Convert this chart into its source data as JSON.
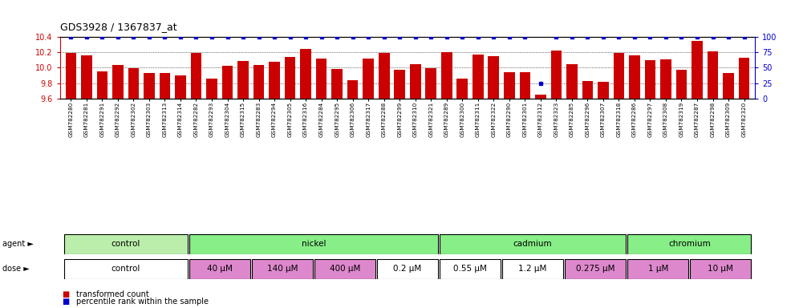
{
  "title": "GDS3928 / 1367837_at",
  "samples": [
    "GSM782280",
    "GSM782281",
    "GSM782291",
    "GSM782292",
    "GSM782302",
    "GSM782303",
    "GSM782313",
    "GSM782314",
    "GSM782282",
    "GSM782293",
    "GSM782304",
    "GSM782315",
    "GSM782283",
    "GSM782294",
    "GSM782305",
    "GSM782316",
    "GSM782284",
    "GSM782295",
    "GSM782306",
    "GSM782317",
    "GSM782288",
    "GSM782299",
    "GSM782310",
    "GSM782321",
    "GSM782289",
    "GSM782300",
    "GSM782311",
    "GSM782322",
    "GSM782290",
    "GSM782301",
    "GSM782312",
    "GSM782323",
    "GSM782285",
    "GSM782296",
    "GSM782307",
    "GSM782318",
    "GSM782286",
    "GSM782297",
    "GSM782308",
    "GSM782319",
    "GSM782287",
    "GSM782298",
    "GSM782309",
    "GSM782320"
  ],
  "bar_values": [
    10.19,
    10.16,
    9.95,
    10.04,
    9.99,
    9.93,
    9.93,
    9.9,
    10.19,
    9.86,
    10.03,
    10.09,
    10.04,
    10.08,
    10.14,
    10.24,
    10.12,
    9.98,
    9.84,
    10.12,
    10.19,
    9.97,
    10.05,
    9.99,
    10.2,
    9.86,
    10.17,
    10.15,
    9.94,
    9.94,
    9.65,
    10.22,
    10.05,
    9.83,
    9.82,
    10.19,
    10.16,
    10.1,
    10.11,
    9.97,
    10.35,
    10.21,
    9.93,
    10.13
  ],
  "percentile_values": [
    100,
    100,
    100,
    100,
    100,
    100,
    100,
    100,
    100,
    100,
    100,
    100,
    100,
    100,
    100,
    100,
    100,
    100,
    100,
    100,
    100,
    100,
    100,
    100,
    100,
    100,
    100,
    100,
    100,
    100,
    25,
    100,
    100,
    100,
    100,
    100,
    100,
    100,
    100,
    100,
    100,
    100,
    100,
    100
  ],
  "bar_color": "#CC0000",
  "dot_color": "#0000CC",
  "ylim_left": [
    9.6,
    10.4
  ],
  "ylim_right": [
    0,
    100
  ],
  "yticks_left": [
    9.6,
    9.8,
    10.0,
    10.2,
    10.4
  ],
  "yticks_right": [
    0,
    25,
    50,
    75,
    100
  ],
  "agent_groups": [
    {
      "label": "control",
      "start": 0,
      "end": 7,
      "color": "#bbeeaa"
    },
    {
      "label": "nickel",
      "start": 8,
      "end": 23,
      "color": "#88ee88"
    },
    {
      "label": "cadmium",
      "start": 24,
      "end": 35,
      "color": "#88ee88"
    },
    {
      "label": "chromium",
      "start": 36,
      "end": 43,
      "color": "#88ee88"
    }
  ],
  "dose_groups": [
    {
      "label": "control",
      "start": 0,
      "end": 7,
      "color": "#ffffff"
    },
    {
      "label": "40 μM",
      "start": 8,
      "end": 11,
      "color": "#dd88cc"
    },
    {
      "label": "140 μM",
      "start": 12,
      "end": 15,
      "color": "#dd88cc"
    },
    {
      "label": "400 μM",
      "start": 16,
      "end": 19,
      "color": "#dd88cc"
    },
    {
      "label": "0.2 μM",
      "start": 20,
      "end": 23,
      "color": "#ffffff"
    },
    {
      "label": "0.55 μM",
      "start": 24,
      "end": 27,
      "color": "#ffffff"
    },
    {
      "label": "1.2 μM",
      "start": 28,
      "end": 31,
      "color": "#ffffff"
    },
    {
      "label": "0.275 μM",
      "start": 32,
      "end": 35,
      "color": "#dd88cc"
    },
    {
      "label": "1 μM",
      "start": 36,
      "end": 39,
      "color": "#dd88cc"
    },
    {
      "label": "10 μM",
      "start": 40,
      "end": 43,
      "color": "#dd88cc"
    }
  ],
  "legend_red_label": "transformed count",
  "legend_blue_label": "percentile rank within the sample",
  "background_color": "#ffffff"
}
